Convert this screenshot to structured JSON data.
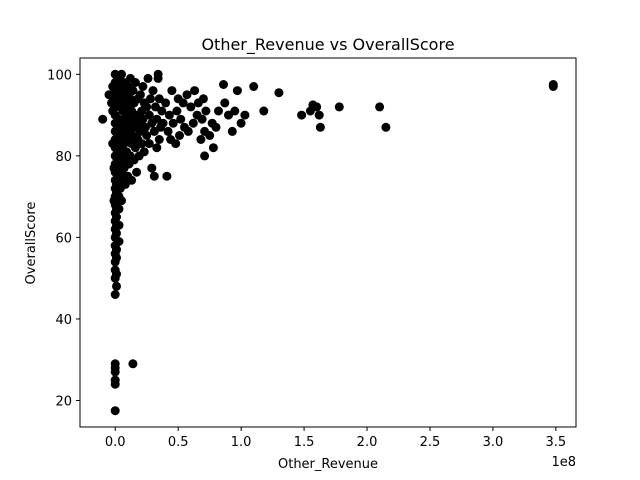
{
  "chart_data": {
    "type": "scatter",
    "title": "Other_Revenue vs OverallScore",
    "xlabel": "Other_Revenue",
    "ylabel": "OverallScore",
    "x_offset_label": "1e8",
    "xlim": [
      -0.28,
      3.66
    ],
    "ylim": [
      13.5,
      104
    ],
    "x_scale": 100000000.0,
    "x_ticks": [
      0.0,
      0.5,
      1.0,
      1.5,
      2.0,
      2.5,
      3.0,
      3.5
    ],
    "x_tick_labels": [
      "0.0",
      "0.5",
      "1.0",
      "1.5",
      "2.0",
      "2.5",
      "3.0",
      "3.5"
    ],
    "y_ticks": [
      20,
      40,
      60,
      80,
      100
    ],
    "y_tick_labels": [
      "20",
      "40",
      "60",
      "80",
      "100"
    ],
    "grid": false,
    "marker_color": "#000000",
    "series": [
      {
        "points": [
          [
            -0.1,
            89
          ],
          [
            -0.05,
            95
          ],
          [
            -0.03,
            93
          ],
          [
            -0.02,
            97
          ],
          [
            -0.02,
            91
          ],
          [
            -0.02,
            83
          ],
          [
            -0.01,
            77
          ],
          [
            -0.01,
            69
          ],
          [
            0.0,
            100
          ],
          [
            0.0,
            98
          ],
          [
            0.0,
            96
          ],
          [
            0.0,
            94
          ],
          [
            0.0,
            92
          ],
          [
            0.0,
            90
          ],
          [
            0.0,
            88
          ],
          [
            0.0,
            86
          ],
          [
            0.0,
            84
          ],
          [
            0.0,
            82
          ],
          [
            0.0,
            80
          ],
          [
            0.0,
            78
          ],
          [
            0.0,
            76
          ],
          [
            0.0,
            74
          ],
          [
            0.0,
            72
          ],
          [
            0.0,
            70
          ],
          [
            0.0,
            68
          ],
          [
            0.0,
            66
          ],
          [
            0.0,
            64
          ],
          [
            0.0,
            62
          ],
          [
            0.0,
            60
          ],
          [
            0.0,
            58
          ],
          [
            0.0,
            56
          ],
          [
            0.0,
            54
          ],
          [
            0.0,
            52
          ],
          [
            0.0,
            50
          ],
          [
            0.0,
            46
          ],
          [
            0.0,
            29
          ],
          [
            0.0,
            28
          ],
          [
            0.0,
            27
          ],
          [
            0.0,
            25
          ],
          [
            0.0,
            24
          ],
          [
            0.0,
            17.5
          ],
          [
            0.01,
            48
          ],
          [
            0.01,
            51
          ],
          [
            0.01,
            55
          ],
          [
            0.01,
            57
          ],
          [
            0.01,
            61
          ],
          [
            0.01,
            63
          ],
          [
            0.01,
            65
          ],
          [
            0.01,
            67
          ],
          [
            0.01,
            71
          ],
          [
            0.01,
            73
          ],
          [
            0.02,
            75
          ],
          [
            0.02,
            79
          ],
          [
            0.02,
            81
          ],
          [
            0.02,
            85
          ],
          [
            0.02,
            87
          ],
          [
            0.02,
            93
          ],
          [
            0.02,
            99
          ],
          [
            0.03,
            59
          ],
          [
            0.03,
            63
          ],
          [
            0.03,
            67
          ],
          [
            0.03,
            70
          ],
          [
            0.03,
            74
          ],
          [
            0.03,
            77
          ],
          [
            0.03,
            83
          ],
          [
            0.03,
            89
          ],
          [
            0.03,
            95
          ],
          [
            0.04,
            72
          ],
          [
            0.04,
            78
          ],
          [
            0.04,
            84
          ],
          [
            0.04,
            92
          ],
          [
            0.04,
            97
          ],
          [
            0.05,
            69
          ],
          [
            0.05,
            76
          ],
          [
            0.05,
            82
          ],
          [
            0.05,
            88
          ],
          [
            0.05,
            94
          ],
          [
            0.05,
            100
          ],
          [
            0.06,
            74
          ],
          [
            0.06,
            80
          ],
          [
            0.06,
            86
          ],
          [
            0.06,
            91
          ],
          [
            0.06,
            96
          ],
          [
            0.07,
            77
          ],
          [
            0.07,
            83
          ],
          [
            0.07,
            89
          ],
          [
            0.07,
            98
          ],
          [
            0.08,
            73
          ],
          [
            0.08,
            79
          ],
          [
            0.08,
            85
          ],
          [
            0.08,
            93
          ],
          [
            0.09,
            81
          ],
          [
            0.09,
            87
          ],
          [
            0.09,
            95
          ],
          [
            0.1,
            75
          ],
          [
            0.1,
            84
          ],
          [
            0.1,
            90
          ],
          [
            0.1,
            97
          ],
          [
            0.11,
            78
          ],
          [
            0.11,
            86
          ],
          [
            0.11,
            92
          ],
          [
            0.12,
            80
          ],
          [
            0.12,
            88
          ],
          [
            0.12,
            94
          ],
          [
            0.12,
            99
          ],
          [
            0.13,
            74
          ],
          [
            0.13,
            83
          ],
          [
            0.13,
            91
          ],
          [
            0.14,
            85
          ],
          [
            0.14,
            96
          ],
          [
            0.14,
            29
          ],
          [
            0.15,
            79
          ],
          [
            0.15,
            89
          ],
          [
            0.15,
            93
          ],
          [
            0.16,
            82
          ],
          [
            0.16,
            87
          ],
          [
            0.16,
            98
          ],
          [
            0.17,
            76
          ],
          [
            0.17,
            90
          ],
          [
            0.18,
            84
          ],
          [
            0.18,
            94
          ],
          [
            0.19,
            80
          ],
          [
            0.19,
            88
          ],
          [
            0.2,
            86
          ],
          [
            0.2,
            95
          ],
          [
            0.21,
            83
          ],
          [
            0.21,
            91
          ],
          [
            0.22,
            89
          ],
          [
            0.22,
            97
          ],
          [
            0.23,
            81
          ],
          [
            0.23,
            93
          ],
          [
            0.24,
            87
          ],
          [
            0.25,
            85
          ],
          [
            0.25,
            92
          ],
          [
            0.26,
            99
          ],
          [
            0.27,
            83
          ],
          [
            0.27,
            90
          ],
          [
            0.28,
            94
          ],
          [
            0.29,
            77
          ],
          [
            0.29,
            88
          ],
          [
            0.3,
            96
          ],
          [
            0.31,
            75
          ],
          [
            0.31,
            86
          ],
          [
            0.32,
            92
          ],
          [
            0.33,
            82
          ],
          [
            0.33,
            89
          ],
          [
            0.34,
            100
          ],
          [
            0.34,
            99
          ],
          [
            0.35,
            84
          ],
          [
            0.35,
            94
          ],
          [
            0.36,
            87
          ],
          [
            0.37,
            91
          ],
          [
            0.38,
            88
          ],
          [
            0.4,
            93
          ],
          [
            0.41,
            75
          ],
          [
            0.42,
            86
          ],
          [
            0.43,
            90
          ],
          [
            0.44,
            84
          ],
          [
            0.45,
            96
          ],
          [
            0.46,
            88
          ],
          [
            0.48,
            83
          ],
          [
            0.49,
            91
          ],
          [
            0.5,
            94
          ],
          [
            0.51,
            85
          ],
          [
            0.52,
            89
          ],
          [
            0.54,
            93
          ],
          [
            0.55,
            87
          ],
          [
            0.57,
            95
          ],
          [
            0.58,
            86
          ],
          [
            0.6,
            92
          ],
          [
            0.62,
            88
          ],
          [
            0.63,
            96
          ],
          [
            0.65,
            90
          ],
          [
            0.66,
            93
          ],
          [
            0.68,
            84
          ],
          [
            0.69,
            89
          ],
          [
            0.7,
            94
          ],
          [
            0.71,
            80
          ],
          [
            0.71,
            86
          ],
          [
            0.72,
            91
          ],
          [
            0.75,
            85
          ],
          [
            0.77,
            88
          ],
          [
            0.78,
            82
          ],
          [
            0.8,
            87
          ],
          [
            0.82,
            91
          ],
          [
            0.86,
            97.5
          ],
          [
            0.87,
            93
          ],
          [
            0.9,
            90
          ],
          [
            0.93,
            86
          ],
          [
            0.95,
            91
          ],
          [
            0.97,
            96
          ],
          [
            1.0,
            88
          ],
          [
            1.03,
            90
          ],
          [
            1.1,
            97
          ],
          [
            1.18,
            91
          ],
          [
            1.3,
            95.5
          ],
          [
            1.48,
            90
          ],
          [
            1.55,
            91
          ],
          [
            1.57,
            92.5
          ],
          [
            1.6,
            92
          ],
          [
            1.62,
            90
          ],
          [
            1.63,
            87
          ],
          [
            1.78,
            92
          ],
          [
            2.1,
            92
          ],
          [
            2.15,
            87
          ],
          [
            3.48,
            97.5
          ],
          [
            3.48,
            97
          ]
        ]
      }
    ]
  }
}
